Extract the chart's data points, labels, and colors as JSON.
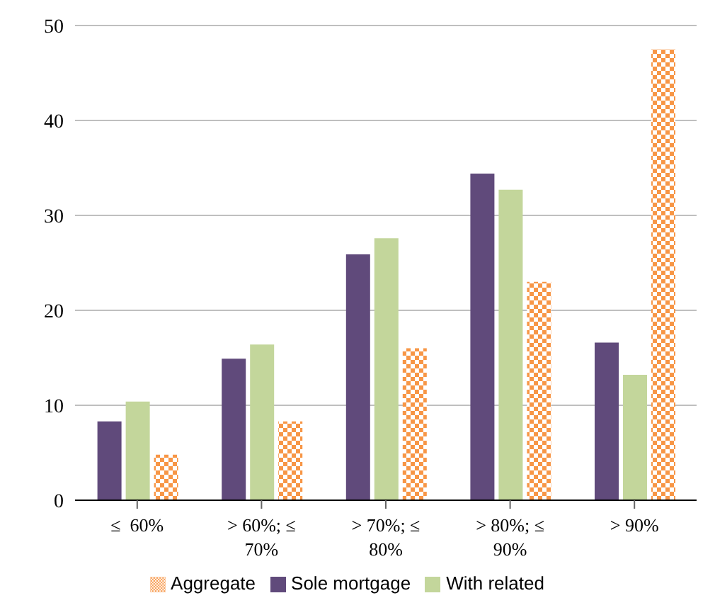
{
  "chart_data": {
    "type": "bar",
    "categories": [
      "≤  60%",
      "> 60%; ≤ 70%",
      "> 70%; ≤ 80%",
      "> 80%; ≤ 90%",
      "> 90%"
    ],
    "series": [
      {
        "name": "Sole mortgage",
        "color": "#604a7b",
        "values": [
          8.3,
          14.9,
          25.9,
          34.4,
          16.6
        ]
      },
      {
        "name": "With related",
        "color": "#c3d69b",
        "values": [
          10.4,
          16.4,
          27.6,
          32.7,
          13.2
        ]
      },
      {
        "name": "Aggregate",
        "color": "#f79646",
        "values": [
          4.8,
          8.3,
          16.0,
          23.0,
          47.5
        ]
      }
    ],
    "ylim": [
      0,
      50
    ],
    "yticks": [
      0,
      10,
      20,
      30,
      40,
      50
    ],
    "grid": "y",
    "legend": "bottom"
  }
}
